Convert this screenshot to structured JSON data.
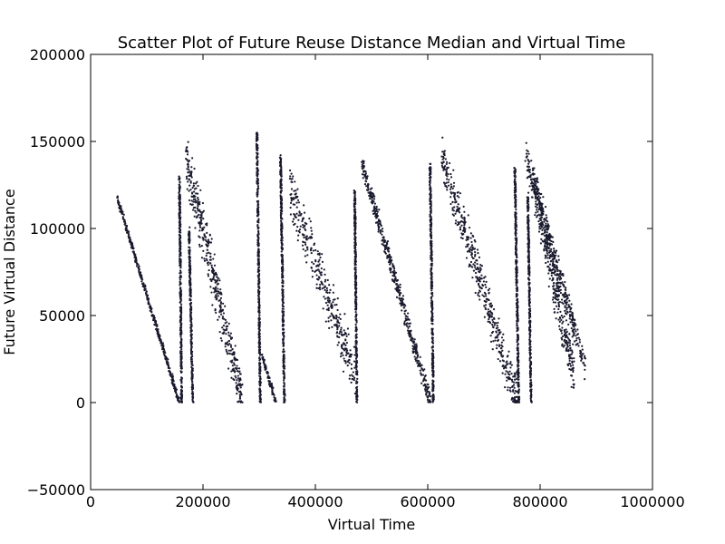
{
  "chart_data": {
    "type": "scatter",
    "title": "Scatter Plot of Future Reuse Distance Median and Virtual Time",
    "xlabel": "Virtual Time",
    "ylabel": "Future Virtual Distance",
    "xlim": [
      0,
      1000000
    ],
    "ylim": [
      -50000,
      200000
    ],
    "x_ticks": [
      0,
      200000,
      400000,
      600000,
      800000,
      1000000
    ],
    "x_tick_labels": [
      "0",
      "200000",
      "400000",
      "600000",
      "800000",
      "1000000"
    ],
    "y_ticks": [
      -50000,
      0,
      50000,
      100000,
      150000,
      200000
    ],
    "y_tick_labels": [
      "−50000",
      "0",
      "50000",
      "100000",
      "150000",
      "200000"
    ],
    "grid": false,
    "legend": "none",
    "marker_color": "#1a1a2e",
    "segments": [
      {
        "x_start": 48000,
        "y_start": 117000,
        "x_end": 158000,
        "y_end": 0,
        "spread": 3000
      },
      {
        "x_start": 158000,
        "y_start": 129000,
        "x_end": 162000,
        "y_end": 0,
        "spread": 2000
      },
      {
        "x_start": 170000,
        "y_start": 139000,
        "x_end": 270000,
        "y_end": 2000,
        "spread": 22000
      },
      {
        "x_start": 175000,
        "y_start": 100000,
        "x_end": 182000,
        "y_end": 0,
        "spread": 3000
      },
      {
        "x_start": 296000,
        "y_start": 155000,
        "x_end": 302000,
        "y_end": 0,
        "spread": 2000
      },
      {
        "x_start": 305000,
        "y_start": 27000,
        "x_end": 330000,
        "y_end": 0,
        "spread": 3000
      },
      {
        "x_start": 338000,
        "y_start": 141000,
        "x_end": 345000,
        "y_end": 0,
        "spread": 2000
      },
      {
        "x_start": 355000,
        "y_start": 122000,
        "x_end": 470000,
        "y_end": 18000,
        "spread": 22000
      },
      {
        "x_start": 470000,
        "y_start": 122000,
        "x_end": 474000,
        "y_end": 0,
        "spread": 2000
      },
      {
        "x_start": 482000,
        "y_start": 138000,
        "x_end": 605000,
        "y_end": 0,
        "spread": 9000
      },
      {
        "x_start": 604000,
        "y_start": 137000,
        "x_end": 610000,
        "y_end": 0,
        "spread": 2000
      },
      {
        "x_start": 626000,
        "y_start": 140000,
        "x_end": 760000,
        "y_end": 0,
        "spread": 20000
      },
      {
        "x_start": 755000,
        "y_start": 135000,
        "x_end": 762000,
        "y_end": 0,
        "spread": 2000
      },
      {
        "x_start": 774000,
        "y_start": 142000,
        "x_end": 880000,
        "y_end": 21000,
        "spread": 14000
      },
      {
        "x_start": 778000,
        "y_start": 120000,
        "x_end": 784000,
        "y_end": 0,
        "spread": 3000
      },
      {
        "x_start": 790000,
        "y_start": 125000,
        "x_end": 860000,
        "y_end": 15000,
        "spread": 22000
      }
    ]
  }
}
